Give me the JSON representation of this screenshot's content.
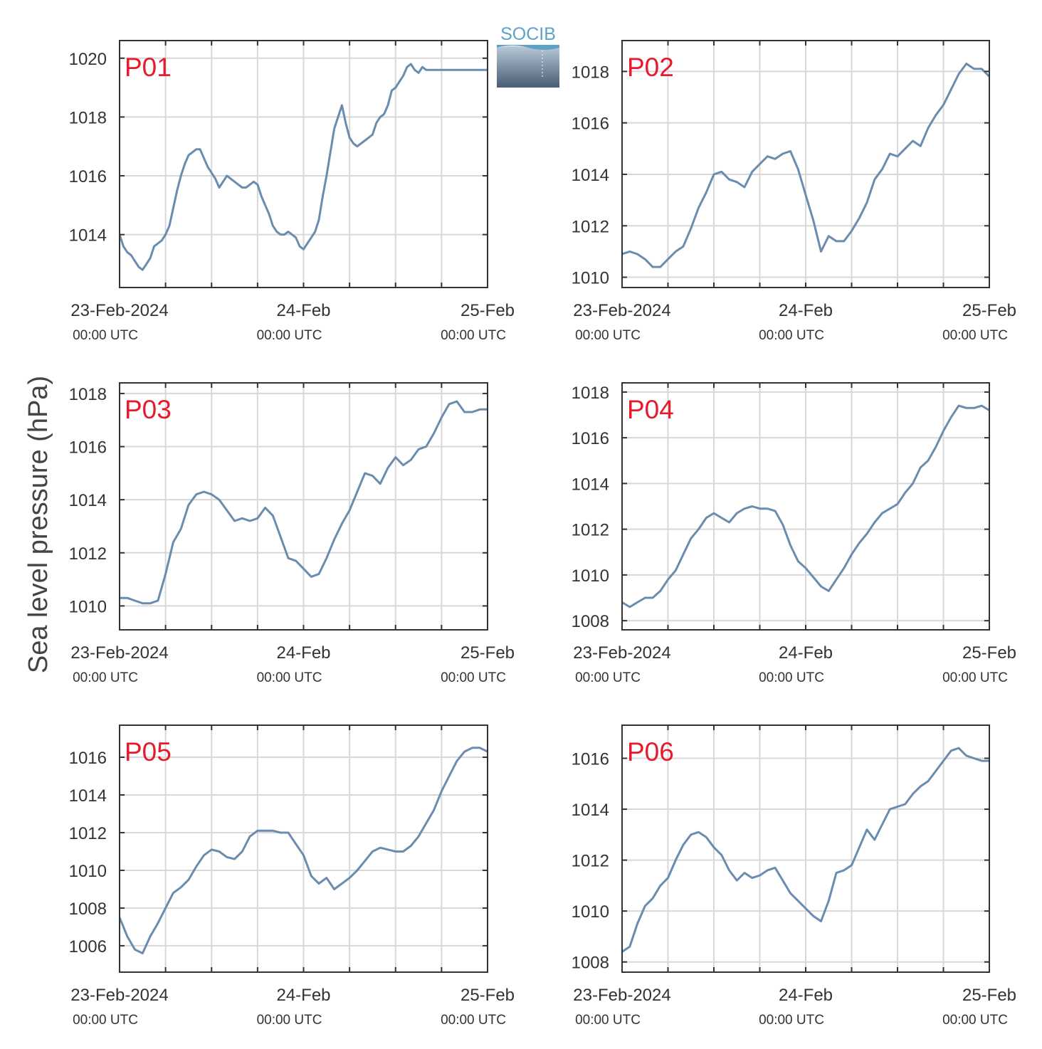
{
  "figure": {
    "ylabel": "Sea level pressure (hPa)",
    "logo_text": "SOCIB",
    "colors": {
      "series": "#6a8caf",
      "panel_label": "#e8192c",
      "axis": "#333333",
      "grid": "#d8d8d8"
    }
  },
  "chart_data": [
    {
      "type": "line",
      "panel_label": "P01",
      "x_ticks": [
        {
          "main": "23-Feb-2024",
          "sub": "00:00 UTC"
        },
        {
          "main": "24-Feb",
          "sub": "00:00 UTC"
        },
        {
          "main": "25-Feb",
          "sub": "00:00 UTC"
        }
      ],
      "xlim": [
        0,
        48
      ],
      "ylim": [
        1012.2,
        1020.6
      ],
      "yticks": [
        1014,
        1016,
        1018,
        1020
      ],
      "grid": true,
      "series": [
        {
          "color": "#6a8caf",
          "x": [
            0,
            0.5,
            1,
            1.5,
            2,
            2.5,
            3,
            3.5,
            4,
            4.5,
            5,
            5.5,
            6,
            6.5,
            7,
            7.5,
            8,
            8.5,
            9,
            9.5,
            10,
            10.5,
            11,
            11.5,
            12,
            12.5,
            13,
            13.5,
            14,
            14.5,
            15,
            15.5,
            16,
            16.5,
            17,
            17.5,
            18,
            18.5,
            19,
            19.5,
            20,
            20.5,
            21,
            21.5,
            22,
            22.5,
            23,
            23.5,
            24,
            24.5,
            25,
            25.5,
            26,
            26.5,
            27,
            27.5,
            28,
            28.5,
            29,
            29.5,
            30,
            30.5,
            31,
            31.5,
            32,
            32.5,
            33,
            33.5,
            34,
            34.5,
            35,
            35.5,
            36,
            36.5,
            37,
            37.5,
            38,
            38.5,
            39,
            39.5,
            40,
            40.5,
            41,
            41.5,
            42,
            42.5,
            43,
            43.5,
            44,
            44.5,
            45,
            45.5,
            46,
            46.5,
            47,
            47.5,
            48
          ],
          "y": [
            1014.0,
            1013.6,
            1013.4,
            1013.3,
            1013.1,
            1012.9,
            1012.8,
            1013.0,
            1013.2,
            1013.6,
            1013.7,
            1013.8,
            1014.0,
            1014.3,
            1014.9,
            1015.5,
            1016.0,
            1016.4,
            1016.7,
            1016.8,
            1016.9,
            1016.9,
            1016.6,
            1016.3,
            1016.1,
            1015.9,
            1015.6,
            1015.8,
            1016.0,
            1015.9,
            1015.8,
            1015.7,
            1015.6,
            1015.6,
            1015.7,
            1015.8,
            1015.7,
            1015.3,
            1015.0,
            1014.7,
            1014.3,
            1014.1,
            1014.0,
            1014.0,
            1014.1,
            1014.0,
            1013.9,
            1013.6,
            1013.5,
            1013.7,
            1013.9,
            1014.1,
            1014.5,
            1015.3,
            1016.0,
            1016.8,
            1017.6,
            1018.0,
            1018.4,
            1017.8,
            1017.3,
            1017.1,
            1017.0,
            1017.1,
            1017.2,
            1017.3,
            1017.4,
            1017.8,
            1018.0,
            1018.1,
            1018.4,
            1018.9,
            1019.0,
            1019.2,
            1019.4,
            1019.7,
            1019.8,
            1019.6,
            1019.5,
            1019.7,
            1019.6,
            1019.6,
            1019.6,
            1019.6,
            1019.6,
            1019.6,
            1019.6,
            1019.6,
            1019.6,
            1019.6,
            1019.6,
            1019.6,
            1019.6,
            1019.6,
            1019.6,
            1019.6,
            1019.6
          ]
        }
      ]
    },
    {
      "type": "line",
      "panel_label": "P02",
      "x_ticks": [
        {
          "main": "23-Feb-2024",
          "sub": "00:00 UTC"
        },
        {
          "main": "24-Feb",
          "sub": "00:00 UTC"
        },
        {
          "main": "25-Feb",
          "sub": "00:00 UTC"
        }
      ],
      "xlim": [
        0,
        48
      ],
      "ylim": [
        1009.6,
        1019.2
      ],
      "yticks": [
        1010,
        1012,
        1014,
        1016,
        1018
      ],
      "grid": true,
      "series": [
        {
          "color": "#6a8caf",
          "x": [
            0,
            1,
            2,
            3,
            4,
            5,
            6,
            7,
            8,
            9,
            10,
            11,
            12,
            13,
            14,
            15,
            16,
            17,
            18,
            19,
            20,
            21,
            22,
            23,
            24,
            25,
            26,
            27,
            28,
            29,
            30,
            31,
            32,
            33,
            34,
            35,
            36,
            37,
            38,
            39,
            40,
            41,
            42,
            43,
            44,
            45,
            46,
            47,
            48
          ],
          "y": [
            1010.9,
            1011.0,
            1010.9,
            1010.7,
            1010.4,
            1010.4,
            1010.7,
            1011.0,
            1011.2,
            1011.9,
            1012.7,
            1013.3,
            1014.0,
            1014.1,
            1013.8,
            1013.7,
            1013.5,
            1014.1,
            1014.4,
            1014.7,
            1014.6,
            1014.8,
            1014.9,
            1014.2,
            1013.2,
            1012.2,
            1011.0,
            1011.6,
            1011.4,
            1011.4,
            1011.8,
            1012.3,
            1012.9,
            1013.8,
            1014.2,
            1014.8,
            1014.7,
            1015.0,
            1015.3,
            1015.1,
            1015.8,
            1016.3,
            1016.7,
            1017.3,
            1017.9,
            1018.3,
            1018.1,
            1018.1,
            1017.8
          ]
        }
      ]
    },
    {
      "type": "line",
      "panel_label": "P03",
      "x_ticks": [
        {
          "main": "23-Feb-2024",
          "sub": "00:00 UTC"
        },
        {
          "main": "24-Feb",
          "sub": "00:00 UTC"
        },
        {
          "main": "25-Feb",
          "sub": "00:00 UTC"
        }
      ],
      "xlim": [
        0,
        48
      ],
      "ylim": [
        1009.1,
        1018.4
      ],
      "yticks": [
        1010,
        1012,
        1014,
        1016,
        1018
      ],
      "grid": true,
      "series": [
        {
          "color": "#6a8caf",
          "x": [
            0,
            1,
            2,
            3,
            4,
            5,
            6,
            7,
            8,
            9,
            10,
            11,
            12,
            13,
            14,
            15,
            16,
            17,
            18,
            19,
            20,
            21,
            22,
            23,
            24,
            25,
            26,
            27,
            28,
            29,
            30,
            31,
            32,
            33,
            34,
            35,
            36,
            37,
            38,
            39,
            40,
            41,
            42,
            43,
            44,
            45,
            46,
            47,
            48
          ],
          "y": [
            1010.3,
            1010.3,
            1010.2,
            1010.1,
            1010.1,
            1010.2,
            1011.2,
            1012.4,
            1012.9,
            1013.8,
            1014.2,
            1014.3,
            1014.2,
            1014.0,
            1013.6,
            1013.2,
            1013.3,
            1013.2,
            1013.3,
            1013.7,
            1013.4,
            1012.6,
            1011.8,
            1011.7,
            1011.4,
            1011.1,
            1011.2,
            1011.8,
            1012.5,
            1013.1,
            1013.6,
            1014.3,
            1015.0,
            1014.9,
            1014.6,
            1015.2,
            1015.6,
            1015.3,
            1015.5,
            1015.9,
            1016.0,
            1016.5,
            1017.1,
            1017.6,
            1017.7,
            1017.3,
            1017.3,
            1017.4,
            1017.4
          ]
        }
      ]
    },
    {
      "type": "line",
      "panel_label": "P04",
      "x_ticks": [
        {
          "main": "23-Feb-2024",
          "sub": "00:00 UTC"
        },
        {
          "main": "24-Feb",
          "sub": "00:00 UTC"
        },
        {
          "main": "25-Feb",
          "sub": "00:00 UTC"
        }
      ],
      "xlim": [
        0,
        48
      ],
      "ylim": [
        1007.6,
        1018.4
      ],
      "yticks": [
        1008,
        1010,
        1012,
        1014,
        1016,
        1018
      ],
      "grid": true,
      "series": [
        {
          "color": "#6a8caf",
          "x": [
            0,
            1,
            2,
            3,
            4,
            5,
            6,
            7,
            8,
            9,
            10,
            11,
            12,
            13,
            14,
            15,
            16,
            17,
            18,
            19,
            20,
            21,
            22,
            23,
            24,
            25,
            26,
            27,
            28,
            29,
            30,
            31,
            32,
            33,
            34,
            35,
            36,
            37,
            38,
            39,
            40,
            41,
            42,
            43,
            44,
            45,
            46,
            47,
            48
          ],
          "y": [
            1008.8,
            1008.6,
            1008.8,
            1009.0,
            1009.0,
            1009.3,
            1009.8,
            1010.2,
            1010.9,
            1011.6,
            1012.0,
            1012.5,
            1012.7,
            1012.5,
            1012.3,
            1012.7,
            1012.9,
            1013.0,
            1012.9,
            1012.9,
            1012.8,
            1012.2,
            1011.3,
            1010.6,
            1010.3,
            1009.9,
            1009.5,
            1009.3,
            1009.8,
            1010.3,
            1010.9,
            1011.4,
            1011.8,
            1012.3,
            1012.7,
            1012.9,
            1013.1,
            1013.6,
            1014.0,
            1014.7,
            1015.0,
            1015.6,
            1016.3,
            1016.9,
            1017.4,
            1017.3,
            1017.3,
            1017.4,
            1017.2
          ]
        }
      ]
    },
    {
      "type": "line",
      "panel_label": "P05",
      "x_ticks": [
        {
          "main": "23-Feb-2024",
          "sub": "00:00 UTC"
        },
        {
          "main": "24-Feb",
          "sub": "00:00 UTC"
        },
        {
          "main": "25-Feb",
          "sub": "00:00 UTC"
        }
      ],
      "xlim": [
        0,
        48
      ],
      "ylim": [
        1004.6,
        1017.7
      ],
      "yticks": [
        1006,
        1008,
        1010,
        1012,
        1014,
        1016
      ],
      "grid": true,
      "series": [
        {
          "color": "#6a8caf",
          "x": [
            0,
            1,
            2,
            3,
            4,
            5,
            6,
            7,
            8,
            9,
            10,
            11,
            12,
            13,
            14,
            15,
            16,
            17,
            18,
            19,
            20,
            21,
            22,
            23,
            24,
            25,
            26,
            27,
            28,
            29,
            30,
            31,
            32,
            33,
            34,
            35,
            36,
            37,
            38,
            39,
            40,
            41,
            42,
            43,
            44,
            45,
            46,
            47,
            48
          ],
          "y": [
            1007.5,
            1006.5,
            1005.8,
            1005.6,
            1006.5,
            1007.2,
            1008.0,
            1008.8,
            1009.1,
            1009.5,
            1010.2,
            1010.8,
            1011.1,
            1011.0,
            1010.7,
            1010.6,
            1011.0,
            1011.8,
            1012.1,
            1012.1,
            1012.1,
            1012.0,
            1012.0,
            1011.4,
            1010.8,
            1009.7,
            1009.3,
            1009.6,
            1009.0,
            1009.3,
            1009.6,
            1010.0,
            1010.5,
            1011.0,
            1011.2,
            1011.1,
            1011.0,
            1011.0,
            1011.3,
            1011.8,
            1012.5,
            1013.2,
            1014.2,
            1015.0,
            1015.8,
            1016.3,
            1016.5,
            1016.5,
            1016.3
          ]
        }
      ]
    },
    {
      "type": "line",
      "panel_label": "P06",
      "x_ticks": [
        {
          "main": "23-Feb-2024",
          "sub": "00:00 UTC"
        },
        {
          "main": "24-Feb",
          "sub": "00:00 UTC"
        },
        {
          "main": "25-Feb",
          "sub": "00:00 UTC"
        }
      ],
      "xlim": [
        0,
        48
      ],
      "ylim": [
        1007.6,
        1017.3
      ],
      "yticks": [
        1008,
        1010,
        1012,
        1014,
        1016
      ],
      "grid": true,
      "series": [
        {
          "color": "#6a8caf",
          "x": [
            0,
            1,
            2,
            3,
            4,
            5,
            6,
            7,
            8,
            9,
            10,
            11,
            12,
            13,
            14,
            15,
            16,
            17,
            18,
            19,
            20,
            21,
            22,
            23,
            24,
            25,
            26,
            27,
            28,
            29,
            30,
            31,
            32,
            33,
            34,
            35,
            36,
            37,
            38,
            39,
            40,
            41,
            42,
            43,
            44,
            45,
            46,
            47,
            48
          ],
          "y": [
            1008.4,
            1008.6,
            1009.5,
            1010.2,
            1010.5,
            1011.0,
            1011.3,
            1012.0,
            1012.6,
            1013.0,
            1013.1,
            1012.9,
            1012.5,
            1012.2,
            1011.6,
            1011.2,
            1011.5,
            1011.3,
            1011.4,
            1011.6,
            1011.7,
            1011.2,
            1010.7,
            1010.4,
            1010.1,
            1009.8,
            1009.6,
            1010.4,
            1011.5,
            1011.6,
            1011.8,
            1012.5,
            1013.2,
            1012.8,
            1013.4,
            1014.0,
            1014.1,
            1014.2,
            1014.6,
            1014.9,
            1015.1,
            1015.5,
            1015.9,
            1016.3,
            1016.4,
            1016.1,
            1016.0,
            1015.9,
            1015.9
          ]
        }
      ]
    }
  ]
}
